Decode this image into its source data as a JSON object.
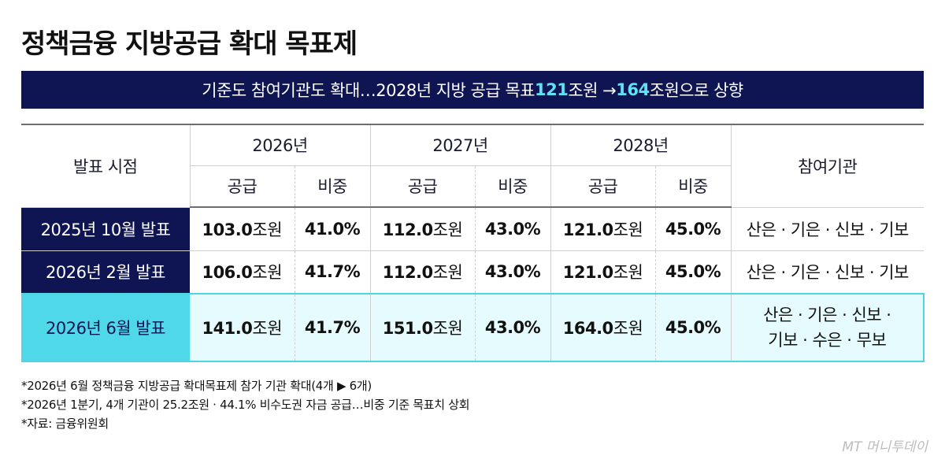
{
  "title": "정책금융 지방공급 확대 목표제",
  "banner": {
    "part1": "기준도 참여기관도 확대…2028년 지방 공급 목표 ",
    "hl1": "121",
    "part2": "조원 → ",
    "hl2": "164",
    "part3": "조원으로 상향"
  },
  "table": {
    "col_announce": "발표 시점",
    "years": [
      "2026년",
      "2027년",
      "2028년"
    ],
    "sub_supply": "공급",
    "sub_ratio": "비중",
    "col_institutions": "참여기관",
    "unit": "조원",
    "rows": [
      {
        "label": "2025년 10월 발표",
        "cells": [
          {
            "supply": "103.0",
            "ratio": "41.0%"
          },
          {
            "supply": "112.0",
            "ratio": "43.0%"
          },
          {
            "supply": "121.0",
            "ratio": "45.0%"
          }
        ],
        "institutions": "산은 · 기은 · 신보 · 기보",
        "institutions2": ""
      },
      {
        "label": "2026년 2월 발표",
        "cells": [
          {
            "supply": "106.0",
            "ratio": "41.7%"
          },
          {
            "supply": "112.0",
            "ratio": "43.0%"
          },
          {
            "supply": "121.0",
            "ratio": "45.0%"
          }
        ],
        "institutions": "산은 · 기은 · 신보 · 기보",
        "institutions2": ""
      },
      {
        "label": "2026년 6월 발표",
        "cells": [
          {
            "supply": "141.0",
            "ratio": "41.7%"
          },
          {
            "supply": "151.0",
            "ratio": "43.0%"
          },
          {
            "supply": "164.0",
            "ratio": "45.0%"
          }
        ],
        "institutions": "산은 · 기은 · 신보 ·",
        "institutions2": "기보 · 수은 · 무보"
      }
    ]
  },
  "notes": [
    "*2026년 6월 정책금융 지방공급 확대목표제 참가 기관 확대(4개 ▶ 6개)",
    "*2026년 1분기, 4개 기관이 25.2조원 · 44.1% 비수도권 자금 공급…비중 기준 목표치 상회",
    "*자료: 금융위원회"
  ],
  "brand": "MT 머니투데이",
  "colors": {
    "navy": "#0f1452",
    "cyan": "#4fd9e8",
    "highlight_text": "#5fe3f2",
    "highlight_row_bg": "#e6fbfd"
  }
}
